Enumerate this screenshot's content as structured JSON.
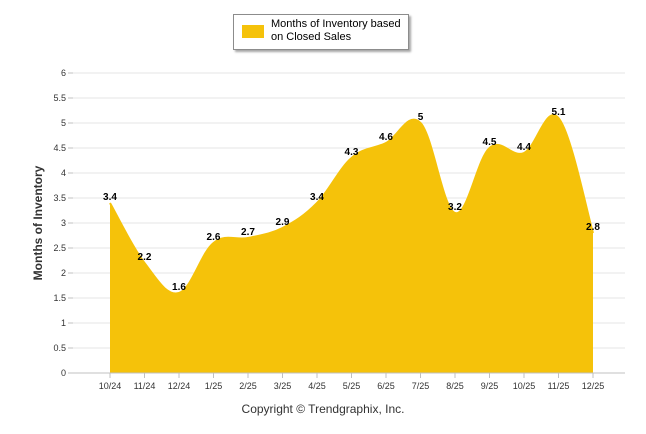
{
  "chart_data": {
    "type": "area",
    "title": "",
    "xlabel": "",
    "ylabel": "Months of Inventory",
    "ylim": [
      0,
      6
    ],
    "y_ticks": [
      "0",
      "0.5",
      "1",
      "1.5",
      "2",
      "2.5",
      "3",
      "3.5",
      "4",
      "4.5",
      "5",
      "5.5",
      "6"
    ],
    "y_tick_values": [
      0,
      0.5,
      1,
      1.5,
      2,
      2.5,
      3,
      3.5,
      4,
      4.5,
      5,
      5.5,
      6
    ],
    "categories": [
      "10/24",
      "11/24",
      "12/24",
      "1/25",
      "2/25",
      "3/25",
      "4/25",
      "5/25",
      "6/25",
      "7/25",
      "8/25",
      "9/25",
      "10/25",
      "11/25",
      "12/25"
    ],
    "series": [
      {
        "name": "Months of Inventory based on Closed Sales",
        "values": [
          3.4,
          2.2,
          1.6,
          2.6,
          2.7,
          2.9,
          3.4,
          4.3,
          4.6,
          5,
          3.2,
          4.5,
          4.4,
          5.1,
          2.8
        ],
        "labels": [
          "3.4",
          "2.2",
          "1.6",
          "2.6",
          "2.7",
          "2.9",
          "3.4",
          "4.3",
          "4.6",
          "5",
          "3.2",
          "4.5",
          "4.4",
          "5.1",
          "2.8"
        ],
        "color": "#F5C20A"
      }
    ],
    "legend": {
      "text": "Months of Inventory based on Closed Sales",
      "position": "top-center"
    },
    "grid": true
  },
  "colors": {
    "area": "#F5C20A",
    "grid": "#e6e6e6",
    "axis": "#c0c0c0"
  },
  "footer": {
    "copyright": "Copyright © Trendgraphix, Inc."
  }
}
